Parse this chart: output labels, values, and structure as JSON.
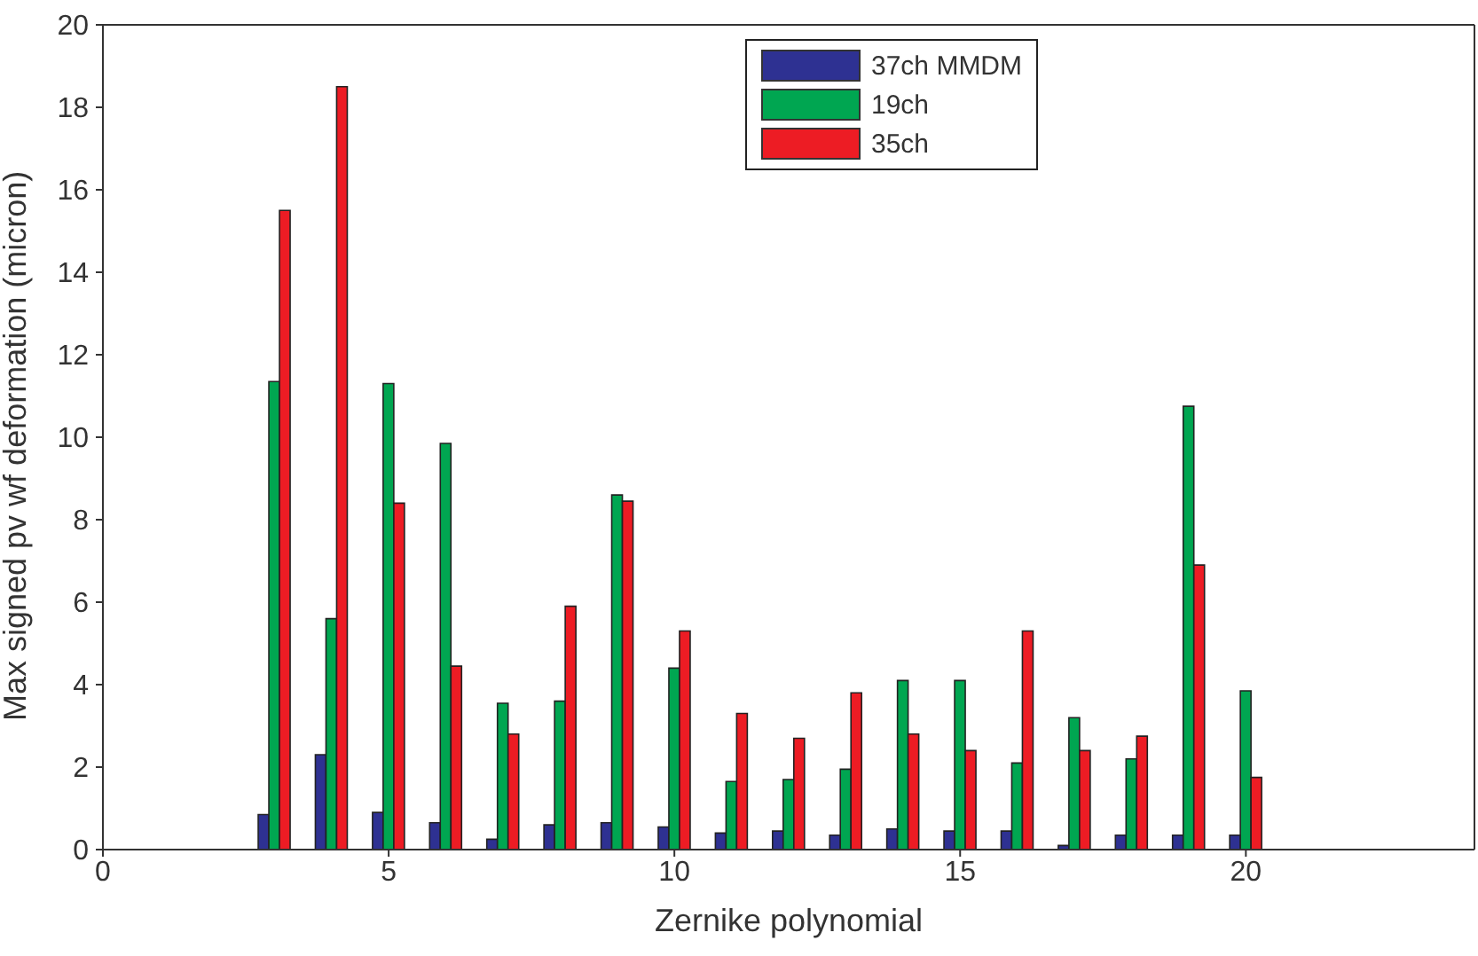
{
  "chart_data": {
    "type": "bar",
    "xlabel": "Zernike polynomial",
    "ylabel": "Max signed pv wf deformation (micron)",
    "x": [
      3,
      4,
      5,
      6,
      7,
      8,
      9,
      10,
      11,
      12,
      13,
      14,
      15,
      16,
      17,
      18,
      19,
      20
    ],
    "series": [
      {
        "name": "37ch MMDM",
        "color": "#2e3192",
        "values": [
          0.85,
          2.3,
          0.9,
          0.65,
          0.25,
          0.6,
          0.65,
          0.55,
          0.4,
          0.45,
          0.35,
          0.5,
          0.45,
          0.45,
          0.1,
          0.35,
          0.35,
          0.35
        ]
      },
      {
        "name": "19ch",
        "color": "#00a651",
        "values": [
          11.35,
          5.6,
          11.3,
          9.85,
          3.55,
          3.6,
          8.6,
          4.4,
          1.65,
          1.7,
          1.95,
          4.1,
          4.1,
          2.1,
          3.2,
          2.2,
          10.75,
          3.85
        ]
      },
      {
        "name": "35ch",
        "color": "#ed1c24",
        "values": [
          15.5,
          18.5,
          8.4,
          4.45,
          2.8,
          5.9,
          8.45,
          5.3,
          3.3,
          2.7,
          3.8,
          2.8,
          2.4,
          5.3,
          2.4,
          2.75,
          6.9,
          1.75
        ]
      }
    ],
    "xlim": [
      0,
      24
    ],
    "xticks": [
      0,
      5,
      10,
      15,
      20
    ],
    "ylim": [
      0,
      20
    ],
    "yticks": [
      0,
      2,
      4,
      6,
      8,
      10,
      12,
      14,
      16,
      18,
      20
    ],
    "grid": false,
    "legend": "top"
  }
}
